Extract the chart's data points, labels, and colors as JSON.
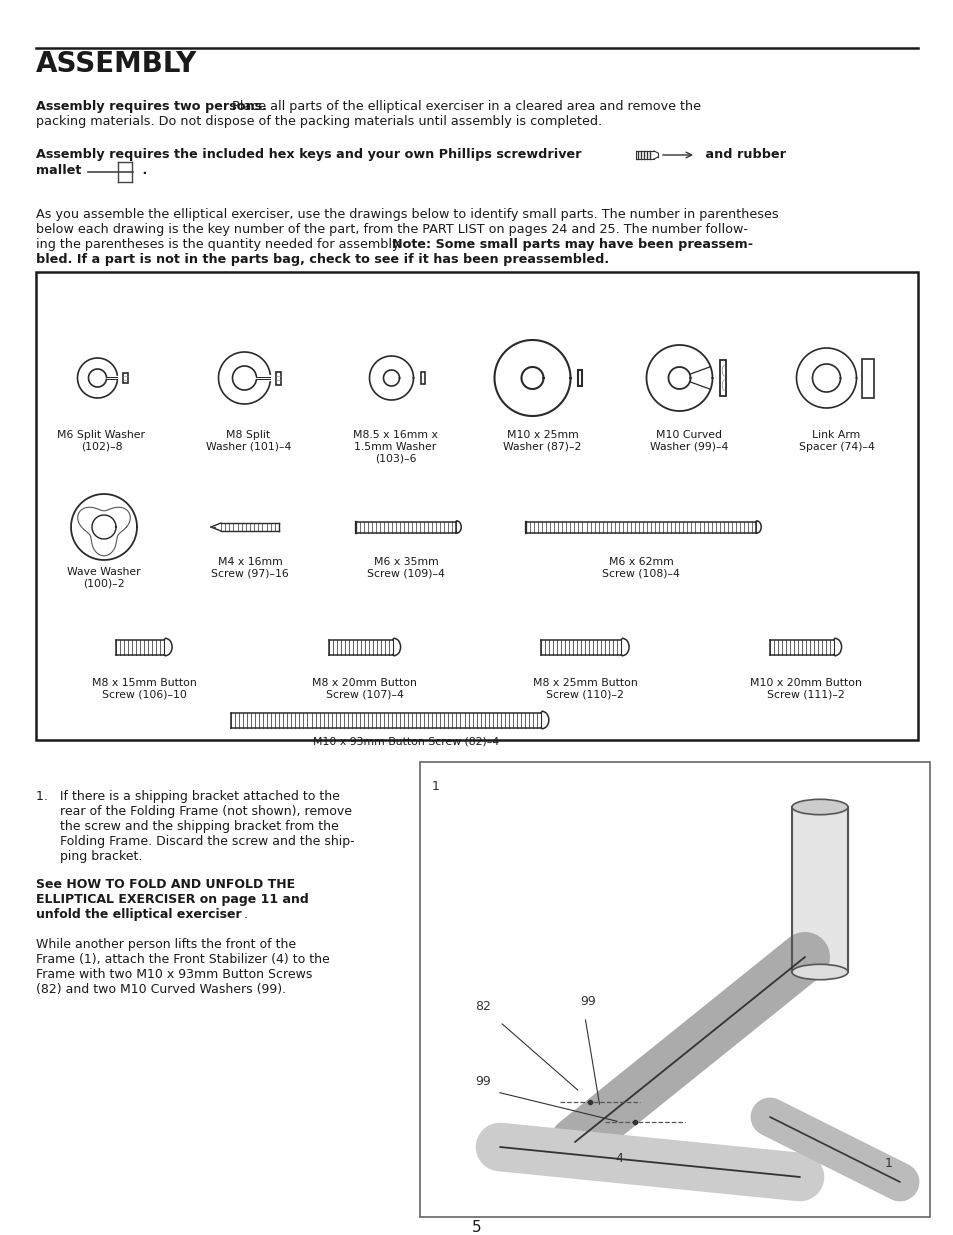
{
  "bg_color": "#ffffff",
  "text_color": "#1a1a1a",
  "title": "ASSEMBLY",
  "page_number": "5",
  "row0_labels": [
    "M6 Split Washer\n(102)–8",
    "M8 Split\nWasher (101)–4",
    "M8.5 x 16mm x\n1.5mm Washer\n(103)–6",
    "M10 x 25mm\nWasher (87)–2",
    "M10 Curved\nWasher (99)–4",
    "Link Arm\nSpacer (74)–4"
  ],
  "row1_labels": [
    "Wave Washer\n(100)–2",
    "M4 x 16mm\nScrew (97)–16",
    "M6 x 35mm\nScrew (109)–4",
    "M6 x 62mm\nScrew (108)–4"
  ],
  "row2_labels": [
    "M8 x 15mm Button\nScrew (106)–10",
    "M8 x 20mm Button\nScrew (107)–4",
    "M8 x 25mm Button\nScrew (110)–2",
    "M10 x 20mm Button\nScrew (111)–2"
  ],
  "row3_label": "M10 x 93mm Button Screw (82)–4"
}
